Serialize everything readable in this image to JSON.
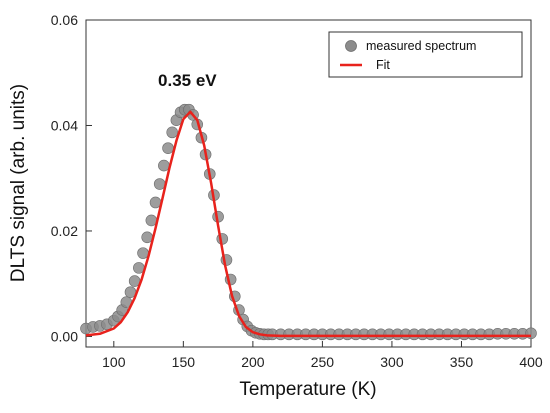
{
  "chart_data": {
    "type": "scatter",
    "xlabel": "Temperature (K)",
    "ylabel": "DLTS signal (arb. units)",
    "xlim": [
      80,
      400
    ],
    "ylim": [
      -0.002,
      0.06
    ],
    "x_ticks": [
      100,
      150,
      200,
      250,
      300,
      350,
      400
    ],
    "x_tick_labels": [
      "100",
      "150",
      "200",
      "250",
      "300",
      "350",
      "400"
    ],
    "y_ticks": [
      0.0,
      0.02,
      0.04,
      0.06
    ],
    "y_tick_labels": [
      "0.00",
      "0.02",
      "0.04",
      "0.06"
    ],
    "grid": false,
    "legend_position": "top-right",
    "annotation": {
      "text": "0.35 eV",
      "x": 150,
      "y": 0.046
    },
    "series": [
      {
        "name": "measured spectrum",
        "kind": "scatter",
        "color": "#8c8c8c",
        "x": [
          80,
          85,
          90,
          95,
          100,
          103,
          106,
          109,
          112,
          115,
          118,
          121,
          124,
          127,
          130,
          133,
          136,
          139,
          142,
          145,
          148,
          151,
          154,
          157,
          160,
          163,
          166,
          169,
          172,
          175,
          178,
          181,
          184,
          187,
          190,
          193,
          196,
          199,
          202,
          205,
          208,
          211,
          214,
          220,
          226,
          232,
          238,
          244,
          250,
          256,
          262,
          268,
          274,
          280,
          286,
          292,
          298,
          304,
          310,
          316,
          322,
          328,
          334,
          340,
          346,
          352,
          358,
          364,
          370,
          376,
          382,
          388,
          394,
          400
        ],
        "y": [
          0.0015,
          0.0018,
          0.002,
          0.0023,
          0.003,
          0.0038,
          0.005,
          0.0065,
          0.0084,
          0.0105,
          0.013,
          0.0158,
          0.0188,
          0.022,
          0.0254,
          0.0289,
          0.0324,
          0.0357,
          0.0387,
          0.041,
          0.0425,
          0.043,
          0.043,
          0.042,
          0.0402,
          0.0377,
          0.0345,
          0.0308,
          0.0268,
          0.0227,
          0.0185,
          0.0145,
          0.0108,
          0.0076,
          0.005,
          0.0032,
          0.0019,
          0.0011,
          0.0007,
          0.0005,
          0.0004,
          0.0004,
          0.0004,
          0.0004,
          0.0004,
          0.0004,
          0.0004,
          0.0004,
          0.0004,
          0.0004,
          0.0004,
          0.0004,
          0.0004,
          0.0004,
          0.0004,
          0.0004,
          0.0004,
          0.0004,
          0.0004,
          0.0004,
          0.0004,
          0.0004,
          0.0004,
          0.0004,
          0.0004,
          0.0004,
          0.0004,
          0.0004,
          0.0004,
          0.0005,
          0.0005,
          0.0005,
          0.0005,
          0.0006
        ]
      },
      {
        "name": "Fit",
        "kind": "line",
        "color": "#e8221c",
        "x": [
          80,
          90,
          100,
          105,
          110,
          115,
          120,
          125,
          130,
          135,
          140,
          145,
          150,
          155,
          160,
          165,
          170,
          175,
          180,
          185,
          190,
          195,
          200,
          205,
          210,
          220,
          240,
          260,
          280,
          300,
          320,
          340,
          360,
          380,
          400
        ],
        "y": [
          0.0002,
          0.0005,
          0.0015,
          0.0027,
          0.0046,
          0.0073,
          0.0108,
          0.0153,
          0.0205,
          0.0262,
          0.0319,
          0.0371,
          0.0412,
          0.0426,
          0.041,
          0.0362,
          0.029,
          0.021,
          0.0135,
          0.0077,
          0.0039,
          0.0018,
          0.0008,
          0.0004,
          0.0002,
          0.0001,
          0.0001,
          0.0001,
          0.0001,
          0.0001,
          0.0001,
          0.0001,
          0.0001,
          0.0001,
          0.0001
        ]
      }
    ]
  }
}
